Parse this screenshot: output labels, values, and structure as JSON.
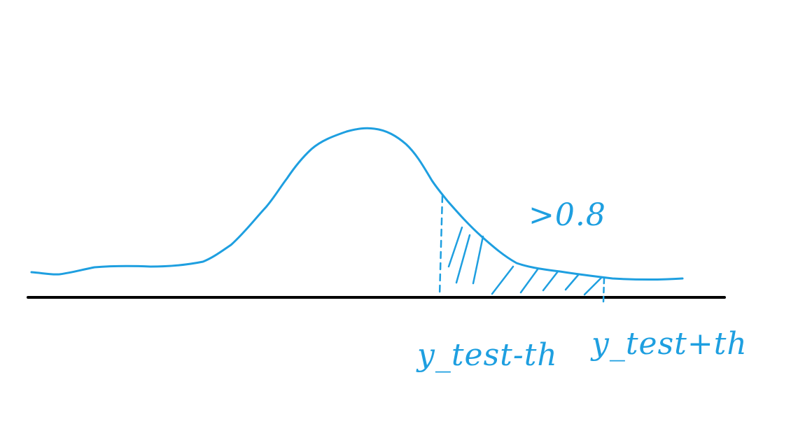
{
  "colors": {
    "ink": "#1e9fe0",
    "axis": "#000000",
    "background": "#ffffff"
  },
  "annotation": {
    "value": ">0.8"
  },
  "labels": {
    "lower": "y_test-th",
    "upper": "y_test+th"
  }
}
